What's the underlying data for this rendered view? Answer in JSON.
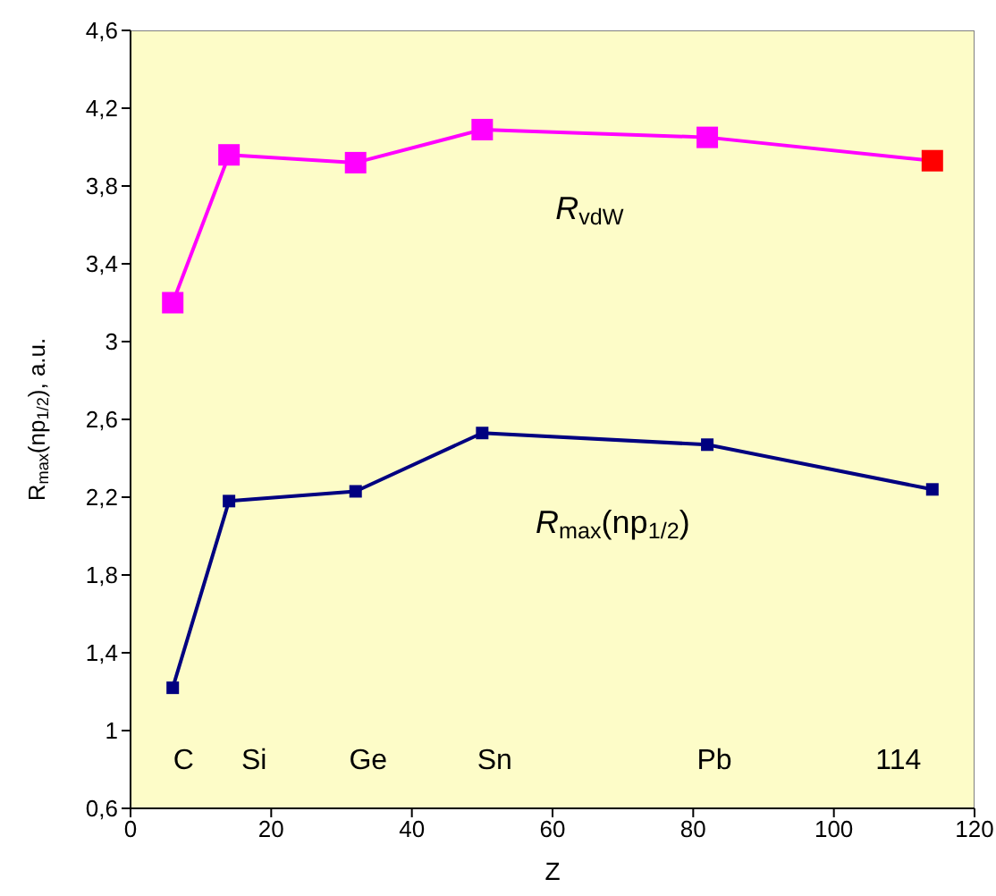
{
  "chart_data": {
    "type": "line",
    "xlabel": "Z",
    "ylabel": "R$_{max}$(np$_{1/2}$), a.u.",
    "xlim": [
      0,
      120
    ],
    "xticks": [
      0,
      20,
      40,
      60,
      80,
      100,
      120
    ],
    "ylim": [
      0.6,
      4.6
    ],
    "yticks": [
      {
        "value": 0.6,
        "label": "0,6"
      },
      1,
      {
        "value": 1.4,
        "label": "1,4"
      },
      {
        "value": 1.8,
        "label": "1,8"
      },
      {
        "value": 2.2,
        "label": "2,2"
      },
      {
        "value": 2.6,
        "label": "2,6"
      },
      3,
      {
        "value": 3.4,
        "label": "3,4"
      },
      {
        "value": 3.8,
        "label": "3,8"
      },
      {
        "value": 4.2,
        "label": "4,2"
      },
      {
        "value": 4.6,
        "label": "4,6"
      }
    ],
    "x": [
      6,
      14,
      32,
      50,
      82,
      114
    ],
    "marker": "square",
    "series": [
      {
        "name": "R$_{vdW}$",
        "color": "#ff00ff",
        "colors": [
          "#ff00ff",
          "#ff00ff",
          "#ff00ff",
          "#ff00ff",
          "#ff00ff",
          "#ff0000"
        ],
        "values": [
          3.2,
          3.96,
          3.92,
          4.09,
          4.05,
          3.93
        ]
      },
      {
        "name": "R$_{max}$(np$_{1/2}$)",
        "color": "#000080",
        "values": [
          1.22,
          2.18,
          2.23,
          2.53,
          2.47,
          2.24
        ]
      }
    ],
    "annotations": [
      "C",
      "Si",
      "Ge",
      "Sn",
      "Pb",
      "114"
    ]
  }
}
